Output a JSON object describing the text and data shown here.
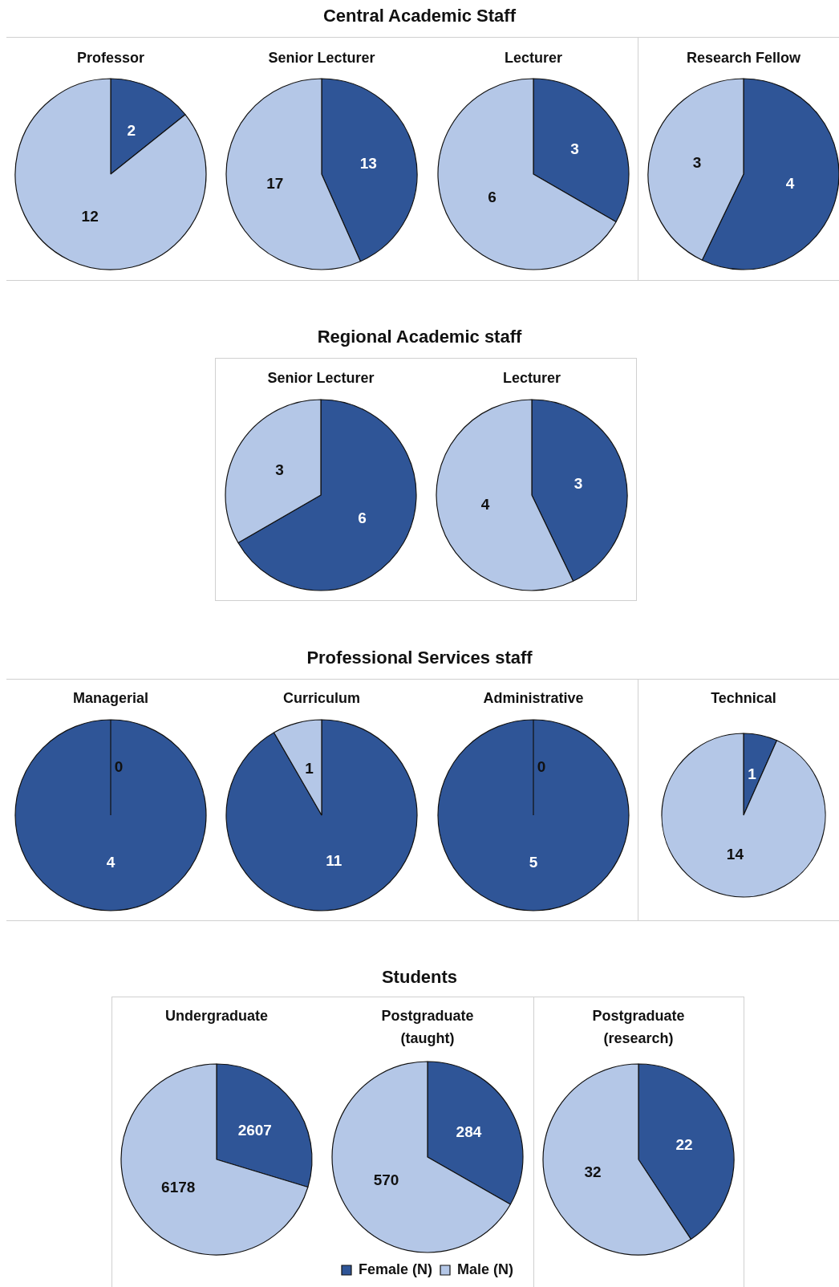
{
  "chart_data": [
    {
      "type": "other",
      "title": "Central Academic Staff"
    },
    {
      "type": "pie",
      "title": "Professor",
      "values": [
        2,
        12
      ],
      "colors": [
        "#2f5597",
        "#b4c7e7"
      ],
      "data_labels": true
    },
    {
      "type": "pie",
      "title": "Senior Lecturer",
      "values": [
        13,
        17
      ],
      "colors": [
        "#2f5597",
        "#b4c7e7"
      ],
      "data_labels": true
    },
    {
      "type": "pie",
      "title": "Lecturer",
      "values": [
        3,
        6
      ],
      "colors": [
        "#2f5597",
        "#b4c7e7"
      ],
      "data_labels": true
    },
    {
      "type": "pie",
      "title": "Research Fellow",
      "values": [
        4,
        3
      ],
      "colors": [
        "#2f5597",
        "#b4c7e7"
      ],
      "data_labels": true
    },
    {
      "type": "other",
      "title": "Regional Academic staff"
    },
    {
      "type": "pie",
      "title": "Senior Lecturer",
      "values": [
        6,
        3
      ],
      "colors": [
        "#2f5597",
        "#b4c7e7"
      ],
      "data_labels": true
    },
    {
      "type": "pie",
      "title": "Lecturer",
      "values": [
        3,
        4
      ],
      "colors": [
        "#2f5597",
        "#b4c7e7"
      ],
      "data_labels": true
    },
    {
      "type": "other",
      "title": "Professional Services staff"
    },
    {
      "type": "pie",
      "title": "Managerial",
      "values": [
        4,
        0
      ],
      "colors": [
        "#2f5597",
        "#b4c7e7"
      ],
      "value_labels": [
        "4",
        "0"
      ]
    },
    {
      "type": "pie",
      "title": "Curriculum",
      "values": [
        11,
        1
      ],
      "colors": [
        "#2f5597",
        "#b4c7e7"
      ],
      "data_labels": true
    },
    {
      "type": "pie",
      "title": "Administrative",
      "values": [
        5,
        0
      ],
      "colors": [
        "#2f5597",
        "#b4c7e7"
      ],
      "value_labels": [
        "5",
        "0"
      ]
    },
    {
      "type": "pie",
      "title": "Technical",
      "values": [
        1,
        14
      ],
      "colors": [
        "#2f5597",
        "#b4c7e7"
      ],
      "data_labels": true
    },
    {
      "type": "other",
      "title": "Students"
    },
    {
      "type": "pie",
      "title": "Undergraduate",
      "values": [
        2607,
        6178
      ],
      "colors": [
        "#2f5597",
        "#b4c7e7"
      ],
      "data_labels": true
    },
    {
      "type": "pie",
      "title": "Postgraduate (taught)",
      "categories": [
        "Female (N)",
        "Male (N)"
      ],
      "values": [
        284,
        570
      ],
      "colors": [
        "#2f5597",
        "#b4c7e7"
      ],
      "data_labels": true,
      "legend": "bottom"
    },
    {
      "type": "pie",
      "title": "Postgraduate (research)",
      "values": [
        22,
        32
      ],
      "colors": [
        "#2f5597",
        "#b4c7e7"
      ],
      "data_labels": true
    }
  ]
}
